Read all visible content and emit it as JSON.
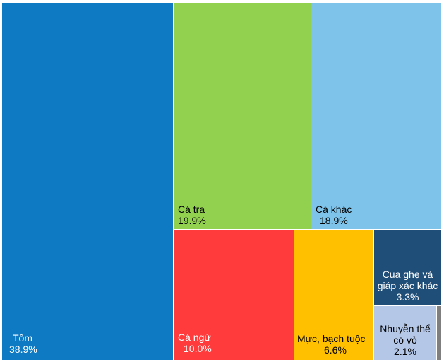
{
  "chart_data": {
    "type": "treemap",
    "unit": "%",
    "items": [
      {
        "label": "Tôm",
        "value": 38.9,
        "display": "38.9%",
        "color": "#0E7AC4",
        "text_color": "#ffffff",
        "icon": "tile-tom"
      },
      {
        "label": "Cá tra",
        "value": 19.9,
        "display": "19.9%",
        "color": "#92D050",
        "text_color": "#000000",
        "icon": "tile-ca-tra"
      },
      {
        "label": "Cá khác",
        "value": 18.9,
        "display": "18.9%",
        "color": "#7EC3E9",
        "text_color": "#000000",
        "icon": "tile-ca-khac"
      },
      {
        "label": "Cá ngừ",
        "value": 10.0,
        "display": "10.0%",
        "color": "#FF3B3B",
        "text_color": "#ffffff",
        "icon": "tile-ca-ngu"
      },
      {
        "label": "Mực, bạch tuộc",
        "value": 6.6,
        "display": "6.6%",
        "color": "#FFC000",
        "text_color": "#000000",
        "icon": "tile-muc-bach-tuoc"
      },
      {
        "label": "Cua ghẹ và giáp xác khác",
        "value": 3.3,
        "display": "3.3%",
        "color": "#1F4E79",
        "text_color": "#ffffff",
        "icon": "tile-cua-ghe"
      },
      {
        "label": "Nhuyễn thể có vỏ",
        "value": 2.1,
        "display": "2.1%",
        "color": "#B4C7E7",
        "text_color": "#000000",
        "icon": "tile-nhuyen-the"
      },
      {
        "label": "",
        "value": 0.3,
        "display": "",
        "color": "#7F7F7F",
        "text_color": "#000000",
        "icon": "tile-other"
      }
    ]
  }
}
